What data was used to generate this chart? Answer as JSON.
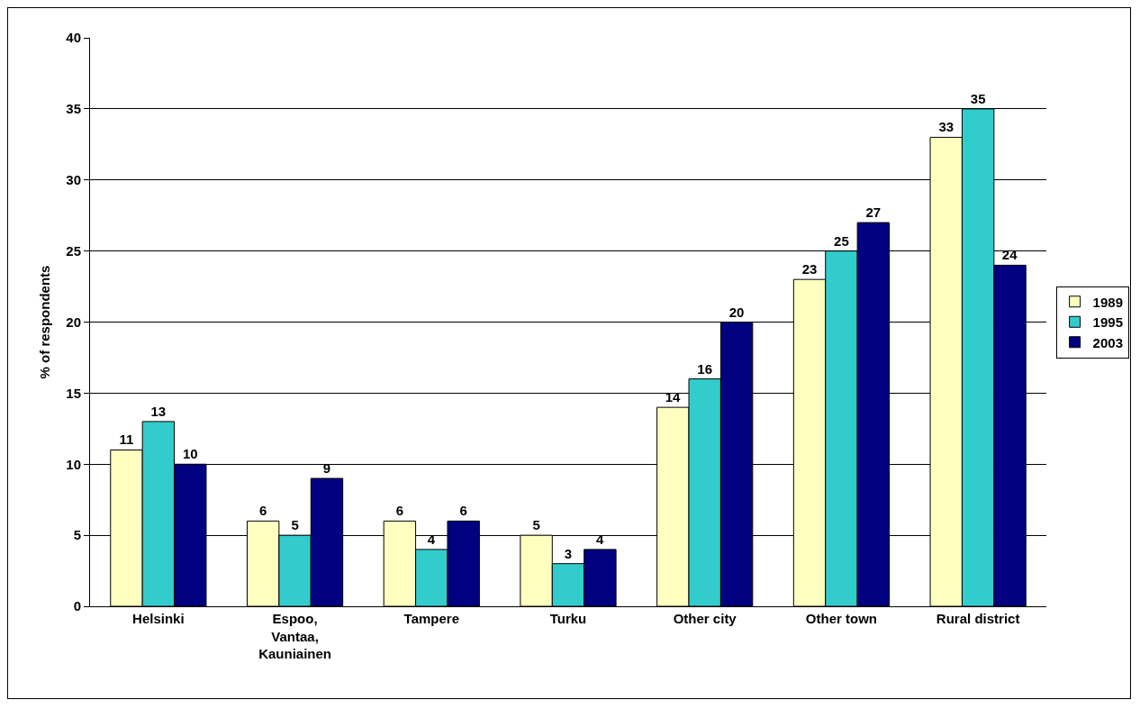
{
  "chart_data": {
    "type": "bar",
    "ylabel": "% of respondents",
    "categories": [
      "Helsinki",
      "Espoo,\nVantaa,\nKauniainen",
      "Tampere",
      "Turku",
      "Other city",
      "Other town",
      "Rural district"
    ],
    "series": [
      {
        "name": "1989",
        "color": "#ffffc0",
        "values": [
          11,
          6,
          6,
          5,
          14,
          23,
          33
        ]
      },
      {
        "name": "1995",
        "color": "#33cccc",
        "values": [
          13,
          5,
          4,
          3,
          16,
          25,
          35
        ]
      },
      {
        "name": "2003",
        "color": "#000080",
        "values": [
          10,
          9,
          6,
          4,
          20,
          27,
          24
        ]
      }
    ],
    "ylim": [
      0,
      40
    ],
    "yticks": [
      0,
      5,
      10,
      15,
      20,
      25,
      30,
      35,
      40
    ],
    "grid": "y",
    "legend": "right",
    "data_labels": true
  }
}
